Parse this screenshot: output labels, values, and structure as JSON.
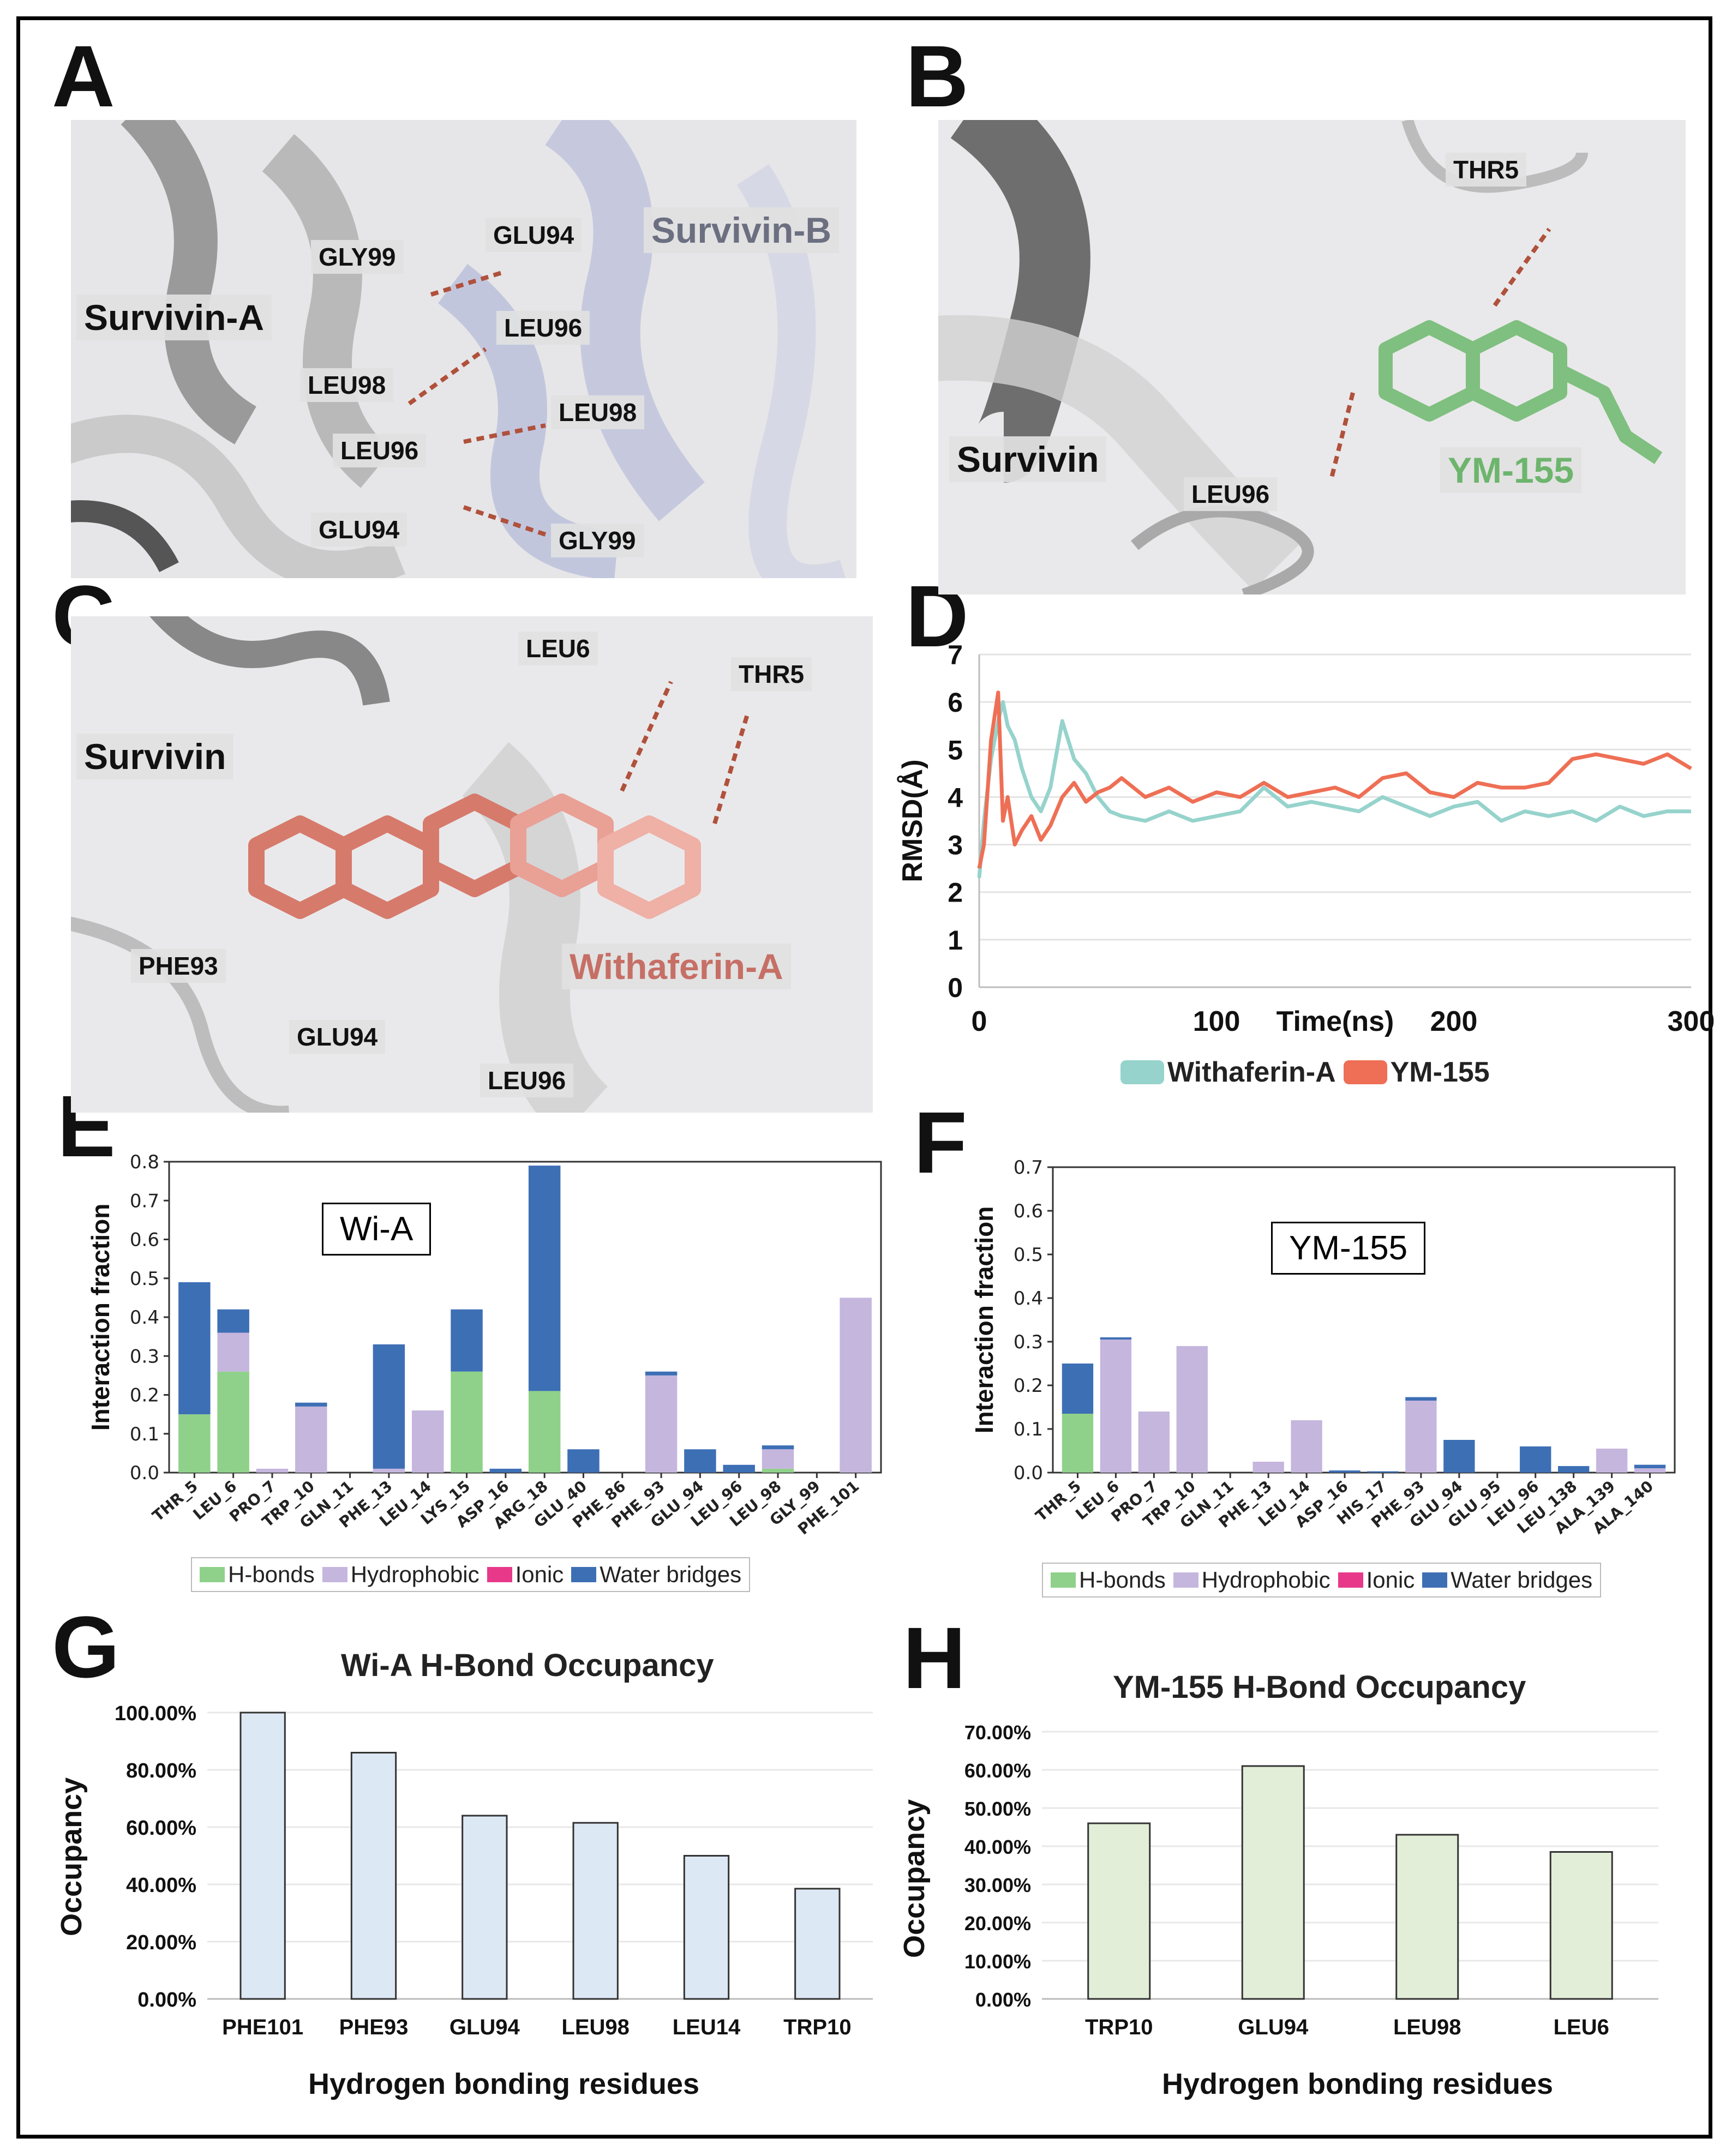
{
  "panels": {
    "A": {
      "letter": "A",
      "labels": [
        "Survivin-A",
        "Survivin-B",
        "GLY99",
        "GLU94",
        "LEU96",
        "LEU98",
        "LEU98",
        "LEU96",
        "GLU94",
        "GLY99"
      ]
    },
    "B": {
      "letter": "B",
      "labels": [
        "THR5",
        "Survivin",
        "YM-155",
        "LEU96"
      ]
    },
    "C": {
      "letter": "C",
      "labels": [
        "LEU6",
        "THR5",
        "Survivin",
        "PHE93",
        "Withaferin-A",
        "GLU94",
        "LEU96"
      ]
    },
    "D": {
      "letter": "D"
    },
    "E": {
      "letter": "E"
    },
    "F": {
      "letter": "F"
    },
    "G": {
      "letter": "G"
    },
    "H": {
      "letter": "H"
    }
  },
  "colors": {
    "withaferin": "#96d3cc",
    "ym155": "#ee6f55",
    "hbonds": "#8fd18a",
    "hydrophobic": "#c5b6de",
    "ionic": "#e8388a",
    "water": "#3d6fb5",
    "g_bar": "#dde8f5",
    "h_bar": "#e3eed8",
    "wi_label": "#c66f66",
    "ym_label": "#6db56d"
  },
  "chart_data": [
    {
      "id": "D",
      "type": "line",
      "xlabel": "Time(ns)",
      "ylabel": "RMSD(Å)",
      "xlim": [
        0,
        300
      ],
      "ylim": [
        0,
        7
      ],
      "xticks": [
        "0",
        "100",
        "200",
        "300"
      ],
      "yticks": [
        "0",
        "1",
        "2",
        "3",
        "4",
        "5",
        "6",
        "7"
      ],
      "grid": true,
      "legend": "bottom",
      "series": [
        {
          "name": "Withaferin-A",
          "x": [
            0,
            2,
            5,
            8,
            10,
            12,
            15,
            18,
            22,
            26,
            30,
            35,
            40,
            45,
            50,
            55,
            60,
            70,
            80,
            90,
            100,
            110,
            120,
            130,
            140,
            150,
            160,
            170,
            180,
            190,
            200,
            210,
            220,
            230,
            240,
            250,
            260,
            270,
            280,
            290,
            300
          ],
          "y": [
            2.3,
            3.5,
            4.8,
            5.6,
            6.0,
            5.5,
            5.2,
            4.6,
            4.0,
            3.7,
            4.2,
            5.6,
            4.8,
            4.5,
            4.0,
            3.7,
            3.6,
            3.5,
            3.7,
            3.5,
            3.6,
            3.7,
            4.2,
            3.8,
            3.9,
            3.8,
            3.7,
            4.0,
            3.8,
            3.6,
            3.8,
            3.9,
            3.5,
            3.7,
            3.6,
            3.7,
            3.5,
            3.8,
            3.6,
            3.7,
            3.7
          ]
        },
        {
          "name": "YM-155",
          "x": [
            0,
            2,
            5,
            8,
            10,
            12,
            15,
            18,
            22,
            26,
            30,
            35,
            40,
            45,
            50,
            55,
            60,
            70,
            80,
            90,
            100,
            110,
            120,
            130,
            140,
            150,
            160,
            170,
            180,
            190,
            200,
            210,
            220,
            230,
            240,
            250,
            260,
            270,
            280,
            290,
            300
          ],
          "y": [
            2.5,
            3.0,
            5.2,
            6.2,
            3.5,
            4.0,
            3.0,
            3.3,
            3.6,
            3.1,
            3.4,
            4.0,
            4.3,
            3.9,
            4.1,
            4.2,
            4.4,
            4.0,
            4.2,
            3.9,
            4.1,
            4.0,
            4.3,
            4.0,
            4.1,
            4.2,
            4.0,
            4.4,
            4.5,
            4.1,
            4.0,
            4.3,
            4.2,
            4.2,
            4.3,
            4.8,
            4.9,
            4.8,
            4.7,
            4.9,
            4.6
          ]
        }
      ]
    },
    {
      "id": "E",
      "type": "bar",
      "title": "Wi-A",
      "ylabel": "Interaction fraction",
      "ylim": [
        0,
        0.8
      ],
      "yticks": [
        "0.0",
        "0.1",
        "0.2",
        "0.3",
        "0.4",
        "0.5",
        "0.6",
        "0.7",
        "0.8"
      ],
      "categories": [
        "THR_5",
        "LEU_6",
        "PRO_7",
        "TRP_10",
        "GLN_11",
        "PHE_13",
        "LEU_14",
        "LYS_15",
        "ASP_16",
        "ARG_18",
        "GLU_40",
        "PHE_86",
        "PHE_93",
        "GLU_94",
        "LEU_96",
        "LEU_98",
        "GLY_99",
        "PHE_101"
      ],
      "series": [
        {
          "name": "H-bonds",
          "values": [
            0.15,
            0.26,
            0,
            0,
            0,
            0,
            0,
            0.26,
            0,
            0.21,
            0,
            0,
            0,
            0,
            0,
            0.01,
            0,
            0
          ]
        },
        {
          "name": "Hydrophobic",
          "values": [
            0,
            0.1,
            0.01,
            0.17,
            0,
            0.01,
            0.16,
            0,
            0,
            0,
            0,
            0,
            0.25,
            0,
            0,
            0.05,
            0,
            0.45
          ]
        },
        {
          "name": "Ionic",
          "values": [
            0,
            0,
            0,
            0,
            0,
            0,
            0,
            0,
            0,
            0,
            0,
            0,
            0,
            0,
            0,
            0,
            0,
            0
          ]
        },
        {
          "name": "Water bridges",
          "values": [
            0.34,
            0.06,
            0,
            0.01,
            0,
            0.32,
            0,
            0.16,
            0.01,
            0.58,
            0.06,
            0,
            0.01,
            0.06,
            0.02,
            0.01,
            0,
            0
          ]
        }
      ],
      "legend": [
        "H-bonds",
        "Hydrophobic",
        "Ionic",
        "Water bridges"
      ]
    },
    {
      "id": "F",
      "type": "bar",
      "title": "YM-155",
      "ylabel": "Interaction fraction",
      "ylim": [
        0,
        0.7
      ],
      "yticks": [
        "0.0",
        "0.1",
        "0.2",
        "0.3",
        "0.4",
        "0.5",
        "0.6",
        "0.7"
      ],
      "categories": [
        "THR_5",
        "LEU_6",
        "PRO_7",
        "TRP_10",
        "GLN_11",
        "PHE_13",
        "LEU_14",
        "ASP_16",
        "HIS_17",
        "PHE_93",
        "GLU_94",
        "GLU_95",
        "LEU_96",
        "LEU_138",
        "ALA_139",
        "ALA_140"
      ],
      "series": [
        {
          "name": "H-bonds",
          "values": [
            0.135,
            0,
            0,
            0,
            0,
            0,
            0,
            0,
            0,
            0,
            0,
            0,
            0,
            0,
            0,
            0
          ]
        },
        {
          "name": "Hydrophobic",
          "values": [
            0,
            0.305,
            0.14,
            0.29,
            0,
            0.025,
            0.12,
            0,
            0,
            0.165,
            0,
            0,
            0,
            0,
            0.055,
            0.01
          ]
        },
        {
          "name": "Ionic",
          "values": [
            0,
            0,
            0,
            0,
            0,
            0,
            0,
            0,
            0,
            0,
            0,
            0,
            0,
            0,
            0,
            0
          ]
        },
        {
          "name": "Water bridges",
          "values": [
            0.115,
            0.005,
            0,
            0,
            0,
            0,
            0,
            0.005,
            0.003,
            0.008,
            0.075,
            0,
            0.06,
            0.015,
            0,
            0.008
          ]
        }
      ],
      "legend": [
        "H-bonds",
        "Hydrophobic",
        "Ionic",
        "Water bridges"
      ]
    },
    {
      "id": "G",
      "type": "bar",
      "title": "Wi-A H-Bond Occupancy",
      "xlabel": "Hydrogen bonding residues",
      "ylabel": "Occupancy",
      "ylim": [
        0,
        100
      ],
      "yticks": [
        "0.00%",
        "20.00%",
        "40.00%",
        "60.00%",
        "80.00%",
        "100.00%"
      ],
      "categories": [
        "PHE101",
        "PHE93",
        "GLU94",
        "LEU98",
        "LEU14",
        "TRP10"
      ],
      "values": [
        100,
        86,
        64,
        61.5,
        50,
        38.5
      ]
    },
    {
      "id": "H",
      "type": "bar",
      "title": "YM-155 H-Bond Occupancy",
      "xlabel": "Hydrogen bonding residues",
      "ylabel": "Occupancy",
      "ylim": [
        0,
        70
      ],
      "yticks": [
        "0.00%",
        "10.00%",
        "20.00%",
        "30.00%",
        "40.00%",
        "50.00%",
        "60.00%",
        "70.00%"
      ],
      "categories": [
        "TRP10",
        "GLU94",
        "LEU98",
        "LEU6"
      ],
      "values": [
        46,
        61,
        43,
        38.5
      ]
    }
  ]
}
